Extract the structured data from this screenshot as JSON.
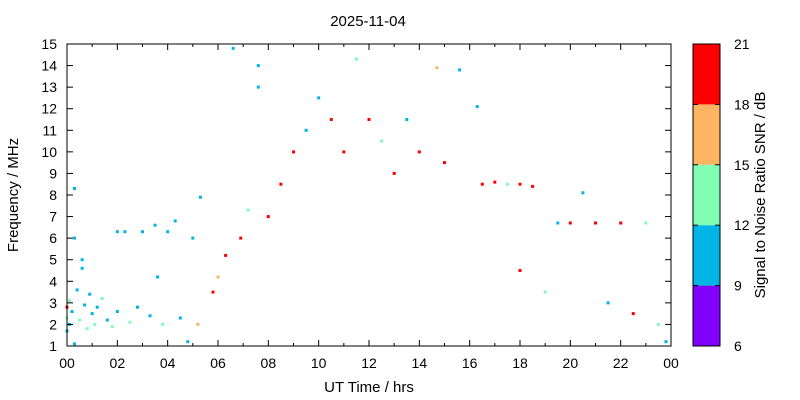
{
  "chart_data": {
    "type": "scatter",
    "title": "2025-11-04",
    "xlabel": "UT Time / hrs",
    "ylabel": "Frequency / MHz",
    "xlim": [
      0,
      24
    ],
    "ylim": [
      1,
      15
    ],
    "x_tick_labels": [
      "00",
      "02",
      "04",
      "06",
      "08",
      "10",
      "12",
      "14",
      "16",
      "18",
      "20",
      "22",
      "00"
    ],
    "y_tick_labels": [
      "1",
      "2",
      "3",
      "4",
      "5",
      "6",
      "7",
      "8",
      "9",
      "10",
      "11",
      "12",
      "13",
      "14",
      "15"
    ],
    "grid": false,
    "colorbar": {
      "label": "Signal to Noise Ratio SNR / dB",
      "range": [
        6,
        21
      ],
      "tick_labels": [
        "6",
        "9",
        "12",
        "15",
        "18",
        "21"
      ],
      "bands": [
        {
          "from": 6,
          "to": 9,
          "color": "#8000ff"
        },
        {
          "from": 9,
          "to": 12,
          "color": "#00b4e6"
        },
        {
          "from": 12,
          "to": 15,
          "color": "#80ffb4"
        },
        {
          "from": 15,
          "to": 18,
          "color": "#ffb464"
        },
        {
          "from": 18,
          "to": 21,
          "color": "#ff0000"
        }
      ]
    },
    "series": [
      {
        "description": "SNR measurements (estimated sample of the dense scatter)",
        "points": [
          {
            "t": 0.0,
            "f": 1.7,
            "snr": 10
          },
          {
            "t": 0.0,
            "f": 2.3,
            "snr": 13
          },
          {
            "t": 0.0,
            "f": 2.8,
            "snr": 19
          },
          {
            "t": 0.1,
            "f": 2.0,
            "snr": 10
          },
          {
            "t": 0.1,
            "f": 3.1,
            "snr": 13
          },
          {
            "t": 0.2,
            "f": 2.6,
            "snr": 10
          },
          {
            "t": 0.3,
            "f": 6.0,
            "snr": 10
          },
          {
            "t": 0.3,
            "f": 8.3,
            "snr": 10
          },
          {
            "t": 0.3,
            "f": 1.1,
            "snr": 10
          },
          {
            "t": 0.4,
            "f": 3.6,
            "snr": 10
          },
          {
            "t": 0.5,
            "f": 2.2,
            "snr": 14
          },
          {
            "t": 0.6,
            "f": 4.6,
            "snr": 10
          },
          {
            "t": 0.6,
            "f": 5.0,
            "snr": 10
          },
          {
            "t": 0.7,
            "f": 2.9,
            "snr": 10
          },
          {
            "t": 0.8,
            "f": 1.8,
            "snr": 13
          },
          {
            "t": 0.9,
            "f": 3.4,
            "snr": 10
          },
          {
            "t": 1.0,
            "f": 2.5,
            "snr": 10
          },
          {
            "t": 1.1,
            "f": 2.0,
            "snr": 13
          },
          {
            "t": 1.2,
            "f": 2.8,
            "snr": 10
          },
          {
            "t": 1.4,
            "f": 3.2,
            "snr": 13
          },
          {
            "t": 1.6,
            "f": 2.2,
            "snr": 10
          },
          {
            "t": 1.8,
            "f": 1.9,
            "snr": 13
          },
          {
            "t": 2.0,
            "f": 2.6,
            "snr": 10
          },
          {
            "t": 2.0,
            "f": 6.3,
            "snr": 10
          },
          {
            "t": 2.3,
            "f": 6.3,
            "snr": 10
          },
          {
            "t": 2.5,
            "f": 2.1,
            "snr": 14
          },
          {
            "t": 2.8,
            "f": 2.8,
            "snr": 10
          },
          {
            "t": 3.0,
            "f": 6.3,
            "snr": 10
          },
          {
            "t": 3.3,
            "f": 2.4,
            "snr": 10
          },
          {
            "t": 3.5,
            "f": 6.6,
            "snr": 10
          },
          {
            "t": 3.6,
            "f": 4.2,
            "snr": 10
          },
          {
            "t": 3.8,
            "f": 2.0,
            "snr": 14
          },
          {
            "t": 4.0,
            "f": 6.3,
            "snr": 10
          },
          {
            "t": 4.3,
            "f": 6.8,
            "snr": 10
          },
          {
            "t": 4.5,
            "f": 2.3,
            "snr": 10
          },
          {
            "t": 4.8,
            "f": 1.2,
            "snr": 10
          },
          {
            "t": 5.0,
            "f": 6.0,
            "snr": 10
          },
          {
            "t": 5.2,
            "f": 2.0,
            "snr": 16
          },
          {
            "t": 5.3,
            "f": 7.9,
            "snr": 10
          },
          {
            "t": 5.8,
            "f": 3.5,
            "snr": 19
          },
          {
            "t": 6.0,
            "f": 4.2,
            "snr": 16
          },
          {
            "t": 6.3,
            "f": 5.2,
            "snr": 19
          },
          {
            "t": 6.6,
            "f": 14.8,
            "snr": 10
          },
          {
            "t": 6.9,
            "f": 6.0,
            "snr": 19
          },
          {
            "t": 7.2,
            "f": 7.3,
            "snr": 13
          },
          {
            "t": 7.6,
            "f": 14.0,
            "snr": 10
          },
          {
            "t": 7.6,
            "f": 13.0,
            "snr": 10
          },
          {
            "t": 8.0,
            "f": 7.0,
            "snr": 19
          },
          {
            "t": 8.5,
            "f": 8.5,
            "snr": 19
          },
          {
            "t": 9.0,
            "f": 10.0,
            "snr": 19
          },
          {
            "t": 9.5,
            "f": 11.0,
            "snr": 10
          },
          {
            "t": 10.0,
            "f": 12.5,
            "snr": 10
          },
          {
            "t": 10.5,
            "f": 11.5,
            "snr": 19
          },
          {
            "t": 11.0,
            "f": 10.0,
            "snr": 19
          },
          {
            "t": 11.5,
            "f": 14.3,
            "snr": 13
          },
          {
            "t": 12.0,
            "f": 11.5,
            "snr": 19
          },
          {
            "t": 12.5,
            "f": 10.5,
            "snr": 13
          },
          {
            "t": 13.0,
            "f": 9.0,
            "snr": 19
          },
          {
            "t": 13.5,
            "f": 11.5,
            "snr": 10
          },
          {
            "t": 14.0,
            "f": 10.0,
            "snr": 19
          },
          {
            "t": 14.7,
            "f": 13.9,
            "snr": 16
          },
          {
            "t": 15.0,
            "f": 9.5,
            "snr": 19
          },
          {
            "t": 15.6,
            "f": 13.8,
            "snr": 10
          },
          {
            "t": 16.3,
            "f": 12.1,
            "snr": 10
          },
          {
            "t": 16.5,
            "f": 8.5,
            "snr": 19
          },
          {
            "t": 17.0,
            "f": 8.6,
            "snr": 19
          },
          {
            "t": 17.5,
            "f": 8.5,
            "snr": 13
          },
          {
            "t": 18.0,
            "f": 8.5,
            "snr": 19
          },
          {
            "t": 18.5,
            "f": 8.4,
            "snr": 19
          },
          {
            "t": 18.0,
            "f": 4.5,
            "snr": 19
          },
          {
            "t": 19.0,
            "f": 3.5,
            "snr": 13
          },
          {
            "t": 19.5,
            "f": 6.7,
            "snr": 10
          },
          {
            "t": 20.0,
            "f": 6.7,
            "snr": 19
          },
          {
            "t": 20.5,
            "f": 8.1,
            "snr": 10
          },
          {
            "t": 21.0,
            "f": 6.7,
            "snr": 19
          },
          {
            "t": 21.5,
            "f": 3.0,
            "snr": 10
          },
          {
            "t": 22.0,
            "f": 6.7,
            "snr": 19
          },
          {
            "t": 22.5,
            "f": 2.5,
            "snr": 19
          },
          {
            "t": 23.0,
            "f": 6.7,
            "snr": 13
          },
          {
            "t": 23.5,
            "f": 2.0,
            "snr": 13
          },
          {
            "t": 23.8,
            "f": 1.2,
            "snr": 10
          }
        ]
      }
    ]
  }
}
